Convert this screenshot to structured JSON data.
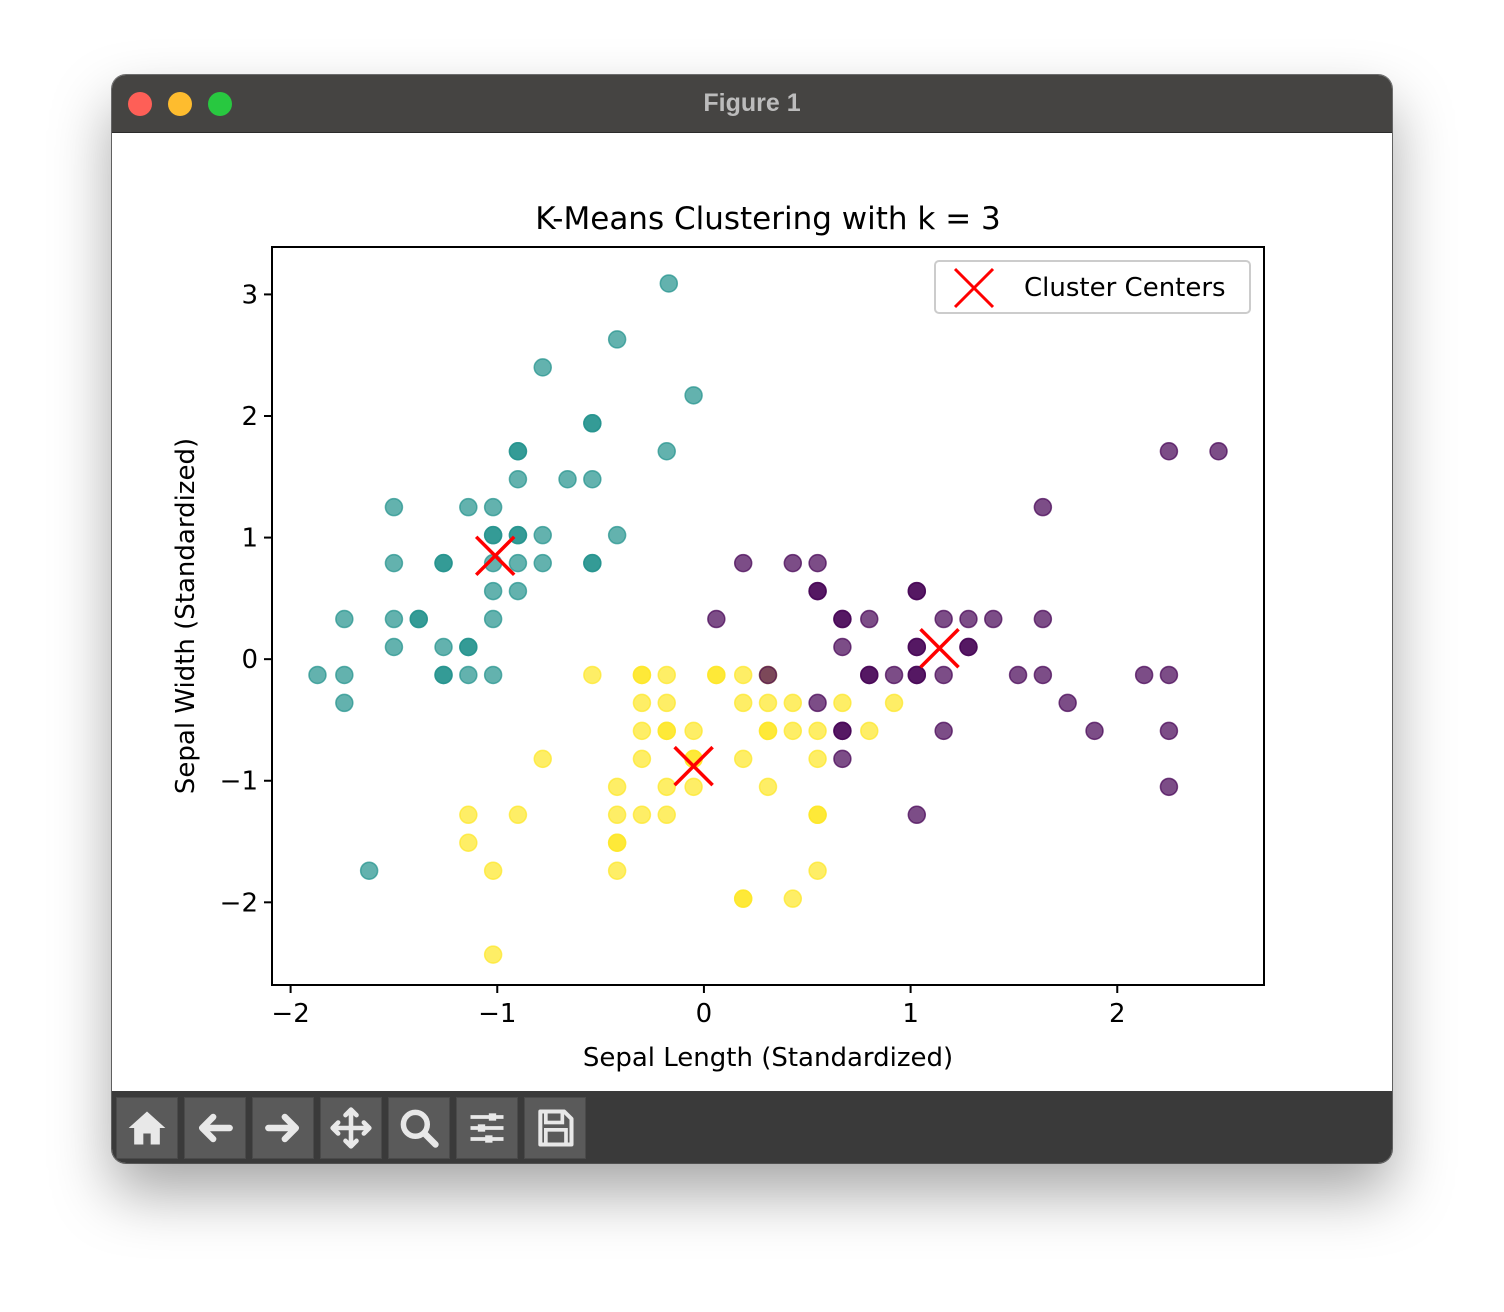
{
  "window": {
    "title": "Figure 1"
  },
  "toolbar": {
    "buttons": [
      {
        "name": "home-button",
        "icon": "home-icon"
      },
      {
        "name": "back-button",
        "icon": "arrow-left-icon"
      },
      {
        "name": "forward-button",
        "icon": "arrow-right-icon"
      },
      {
        "name": "pan-button",
        "icon": "move-icon"
      },
      {
        "name": "zoom-button",
        "icon": "magnifier-icon"
      },
      {
        "name": "configure-subplots-button",
        "icon": "sliders-icon"
      },
      {
        "name": "save-button",
        "icon": "floppy-disk-icon"
      }
    ]
  },
  "chart_data": {
    "type": "scatter",
    "title": "K-Means Clustering with k = 3",
    "xlabel": "Sepal Length (Standardized)",
    "ylabel": "Sepal Width (Standardized)",
    "xlim": [
      -2.09,
      2.71
    ],
    "ylim": [
      -2.68,
      3.39
    ],
    "xticks": [
      -2,
      -1,
      0,
      1,
      2
    ],
    "yticks": [
      -2,
      -1,
      0,
      1,
      2,
      3
    ],
    "xtick_labels": [
      "−2",
      "−1",
      "0",
      "1",
      "2"
    ],
    "ytick_labels": [
      "−2",
      "−1",
      "0",
      "1",
      "2",
      "3"
    ],
    "grid": false,
    "legend": {
      "position": "top-right",
      "entries": [
        "Cluster Centers"
      ]
    },
    "colors": {
      "cluster_0": "#440154",
      "cluster_1": "#21918c",
      "cluster_2": "#fde725",
      "centers": "#ff0000"
    },
    "point_alpha": 0.7,
    "series": [
      {
        "cluster": 1,
        "points": [
          [
            -0.17,
            3.09
          ],
          [
            -0.42,
            2.63
          ],
          [
            -0.78,
            2.4
          ],
          [
            -0.05,
            2.17
          ],
          [
            -0.54,
            1.94
          ],
          [
            -0.54,
            1.94
          ],
          [
            -0.18,
            1.71
          ],
          [
            -0.9,
            1.71
          ],
          [
            -0.9,
            1.71
          ],
          [
            -0.66,
            1.48
          ],
          [
            -0.54,
            1.48
          ],
          [
            -0.9,
            1.48
          ],
          [
            -1.5,
            1.25
          ],
          [
            -1.14,
            1.25
          ],
          [
            -1.02,
            1.25
          ],
          [
            -1.02,
            1.02
          ],
          [
            -1.02,
            1.02
          ],
          [
            -0.9,
            1.02
          ],
          [
            -0.9,
            1.02
          ],
          [
            -0.78,
            1.02
          ],
          [
            -0.42,
            1.02
          ],
          [
            -1.5,
            0.79
          ],
          [
            -1.26,
            0.79
          ],
          [
            -1.26,
            0.79
          ],
          [
            -1.02,
            0.79
          ],
          [
            -0.9,
            0.79
          ],
          [
            -0.78,
            0.79
          ],
          [
            -0.54,
            0.79
          ],
          [
            -0.54,
            0.79
          ],
          [
            -1.02,
            0.56
          ],
          [
            -0.9,
            0.56
          ],
          [
            -1.74,
            0.33
          ],
          [
            -1.5,
            0.33
          ],
          [
            -1.38,
            0.33
          ],
          [
            -1.38,
            0.33
          ],
          [
            -1.02,
            0.33
          ],
          [
            -1.5,
            0.1
          ],
          [
            -1.26,
            0.1
          ],
          [
            -1.14,
            0.1
          ],
          [
            -1.14,
            0.1
          ],
          [
            -1.87,
            -0.13
          ],
          [
            -1.74,
            -0.13
          ],
          [
            -1.26,
            -0.13
          ],
          [
            -1.26,
            -0.13
          ],
          [
            -1.14,
            -0.13
          ],
          [
            -1.02,
            -0.13
          ],
          [
            -1.74,
            -0.36
          ],
          [
            -1.62,
            -1.74
          ]
        ]
      },
      {
        "cluster": 2,
        "points": [
          [
            -0.54,
            -0.13
          ],
          [
            -0.3,
            -0.13
          ],
          [
            -0.3,
            -0.13
          ],
          [
            -0.18,
            -0.13
          ],
          [
            0.06,
            -0.13
          ],
          [
            0.06,
            -0.13
          ],
          [
            0.19,
            -0.13
          ],
          [
            0.31,
            -0.13
          ],
          [
            -0.3,
            -0.36
          ],
          [
            -0.18,
            -0.36
          ],
          [
            0.19,
            -0.36
          ],
          [
            0.31,
            -0.36
          ],
          [
            0.43,
            -0.36
          ],
          [
            0.67,
            -0.36
          ],
          [
            0.92,
            -0.36
          ],
          [
            -0.3,
            -0.59
          ],
          [
            -0.18,
            -0.59
          ],
          [
            -0.18,
            -0.59
          ],
          [
            -0.05,
            -0.59
          ],
          [
            0.31,
            -0.59
          ],
          [
            0.31,
            -0.59
          ],
          [
            0.43,
            -0.59
          ],
          [
            0.55,
            -0.59
          ],
          [
            0.8,
            -0.59
          ],
          [
            -0.78,
            -0.82
          ],
          [
            -0.3,
            -0.82
          ],
          [
            -0.05,
            -0.82
          ],
          [
            -0.05,
            -0.82
          ],
          [
            0.19,
            -0.82
          ],
          [
            0.55,
            -0.82
          ],
          [
            -0.42,
            -1.05
          ],
          [
            -0.18,
            -1.05
          ],
          [
            -0.05,
            -1.05
          ],
          [
            0.31,
            -1.05
          ],
          [
            -1.14,
            -1.28
          ],
          [
            -0.9,
            -1.28
          ],
          [
            -0.42,
            -1.28
          ],
          [
            -0.3,
            -1.28
          ],
          [
            -0.18,
            -1.28
          ],
          [
            0.55,
            -1.28
          ],
          [
            0.55,
            -1.28
          ],
          [
            -1.14,
            -1.51
          ],
          [
            -0.42,
            -1.51
          ],
          [
            -0.42,
            -1.51
          ],
          [
            -1.02,
            -1.74
          ],
          [
            -0.42,
            -1.74
          ],
          [
            0.55,
            -1.74
          ],
          [
            0.19,
            -1.97
          ],
          [
            0.19,
            -1.97
          ],
          [
            0.43,
            -1.97
          ],
          [
            -1.02,
            -2.43
          ]
        ]
      },
      {
        "cluster": 0,
        "points": [
          [
            2.25,
            1.71
          ],
          [
            2.49,
            1.71
          ],
          [
            1.64,
            1.25
          ],
          [
            0.19,
            0.79
          ],
          [
            0.43,
            0.79
          ],
          [
            0.55,
            0.79
          ],
          [
            0.55,
            0.56
          ],
          [
            0.55,
            0.56
          ],
          [
            1.03,
            0.56
          ],
          [
            1.03,
            0.56
          ],
          [
            0.06,
            0.33
          ],
          [
            0.67,
            0.33
          ],
          [
            0.67,
            0.33
          ],
          [
            0.8,
            0.33
          ],
          [
            1.16,
            0.33
          ],
          [
            1.28,
            0.33
          ],
          [
            1.4,
            0.33
          ],
          [
            1.64,
            0.33
          ],
          [
            0.67,
            0.1
          ],
          [
            1.03,
            0.1
          ],
          [
            1.03,
            0.1
          ],
          [
            1.28,
            0.1
          ],
          [
            1.28,
            0.1
          ],
          [
            0.31,
            -0.13
          ],
          [
            0.8,
            -0.13
          ],
          [
            0.8,
            -0.13
          ],
          [
            0.92,
            -0.13
          ],
          [
            1.03,
            -0.13
          ],
          [
            1.03,
            -0.13
          ],
          [
            1.16,
            -0.13
          ],
          [
            1.52,
            -0.13
          ],
          [
            1.64,
            -0.13
          ],
          [
            2.13,
            -0.13
          ],
          [
            2.25,
            -0.13
          ],
          [
            0.55,
            -0.36
          ],
          [
            1.76,
            -0.36
          ],
          [
            0.67,
            -0.59
          ],
          [
            0.67,
            -0.59
          ],
          [
            1.16,
            -0.59
          ],
          [
            1.89,
            -0.59
          ],
          [
            2.25,
            -0.59
          ],
          [
            0.67,
            -0.82
          ],
          [
            2.25,
            -1.05
          ],
          [
            1.03,
            -1.28
          ]
        ]
      }
    ],
    "centers": [
      [
        -1.01,
        0.85
      ],
      [
        -0.05,
        -0.88
      ],
      [
        1.14,
        0.09
      ]
    ]
  }
}
